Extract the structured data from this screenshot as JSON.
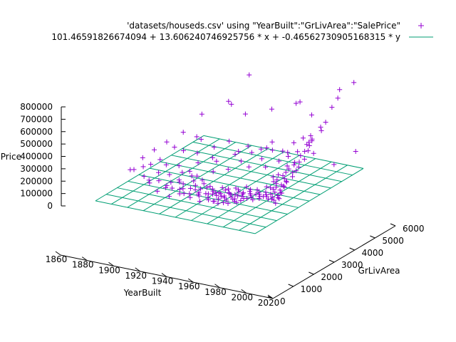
{
  "chart_data": {
    "type": "scatter",
    "plot3d": true,
    "legend": {
      "placement": "top-right",
      "entries": [
        {
          "label": "'datasets/houseds.csv' using \"YearBuilt\":\"GrLivArea\":\"SalePrice\"",
          "marker": "plus",
          "color": "#9400d3"
        },
        {
          "label": "101.46591826674094 + 13.606240746925756 * x + -0.46562730905168315 * y",
          "marker": "line",
          "color": "#009e73"
        }
      ]
    },
    "axes": {
      "x": {
        "label": "YearBuilt",
        "range": [
          1860,
          2020
        ],
        "ticks": [
          "1860",
          "1880",
          "1900",
          "1920",
          "1940",
          "1960",
          "1980",
          "2000",
          "2020"
        ]
      },
      "y": {
        "label": "GrLivArea",
        "range": [
          0,
          6000
        ],
        "ticks": [
          "0",
          "1000",
          "2000",
          "3000",
          "4000",
          "5000",
          "6000"
        ]
      },
      "z": {
        "label": "SalePrice",
        "range": [
          0,
          800000
        ],
        "ticks": [
          "0",
          "100000",
          "200000",
          "300000",
          "400000",
          "500000",
          "600000",
          "700000",
          "800000"
        ]
      }
    },
    "series": [
      {
        "name": "'datasets/houseds.csv' using \"YearBuilt\":\"GrLivArea\":\"SalePrice\"",
        "kind": "points",
        "color": "#9400d3",
        "points": [
          [
            1915,
            1050,
            125000
          ],
          [
            1920,
            1500,
            140000
          ],
          [
            1925,
            1200,
            118000
          ],
          [
            1930,
            1650,
            155000
          ],
          [
            1935,
            1100,
            110000
          ],
          [
            1940,
            1400,
            132000
          ],
          [
            1945,
            1000,
            120000
          ],
          [
            1950,
            1200,
            128000
          ],
          [
            1955,
            1300,
            140000
          ],
          [
            1958,
            1150,
            135000
          ],
          [
            1960,
            1250,
            145000
          ],
          [
            1963,
            1100,
            140000
          ],
          [
            1965,
            1400,
            150000
          ],
          [
            1968,
            1300,
            148000
          ],
          [
            1970,
            1200,
            142000
          ],
          [
            1972,
            1500,
            160000
          ],
          [
            1975,
            1250,
            155000
          ],
          [
            1977,
            1400,
            162000
          ],
          [
            1980,
            1600,
            170000
          ],
          [
            1985,
            1700,
            185000
          ],
          [
            1990,
            1900,
            200000
          ],
          [
            1993,
            2100,
            230000
          ],
          [
            1995,
            1800,
            210000
          ],
          [
            1997,
            2000,
            230000
          ],
          [
            1999,
            1700,
            215000
          ],
          [
            2000,
            1800,
            225000
          ],
          [
            2001,
            2200,
            260000
          ],
          [
            2002,
            1600,
            205000
          ],
          [
            2003,
            1900,
            240000
          ],
          [
            2004,
            2100,
            255000
          ],
          [
            2005,
            1700,
            220000
          ],
          [
            2005,
            2400,
            300000
          ],
          [
            2006,
            1500,
            195000
          ],
          [
            2006,
            2000,
            260000
          ],
          [
            2007,
            1800,
            240000
          ],
          [
            2007,
            2600,
            330000
          ],
          [
            2008,
            1600,
            210000
          ],
          [
            2008,
            2200,
            290000
          ],
          [
            2009,
            1400,
            185000
          ],
          [
            2009,
            2800,
            380000
          ],
          [
            1910,
            900,
            100000
          ],
          [
            1912,
            1300,
            115000
          ],
          [
            1918,
            1600,
            145000
          ],
          [
            1922,
            800,
            90000
          ],
          [
            1926,
            1800,
            175000
          ],
          [
            1928,
            1000,
            105000
          ],
          [
            1932,
            1350,
            125000
          ],
          [
            1936,
            1750,
            165000
          ],
          [
            1938,
            950,
            98000
          ],
          [
            1941,
            1250,
            118000
          ],
          [
            1946,
            1550,
            150000
          ],
          [
            1948,
            850,
            95000
          ],
          [
            1952,
            1050,
            115000
          ],
          [
            1954,
            950,
            110000
          ],
          [
            1956,
            1600,
            155000
          ],
          [
            1959,
            900,
            112000
          ],
          [
            1961,
            1450,
            158000
          ],
          [
            1962,
            1000,
            128000
          ],
          [
            1964,
            1200,
            138000
          ],
          [
            1966,
            1100,
            135000
          ],
          [
            1967,
            1650,
            168000
          ],
          [
            1969,
            1000,
            132000
          ],
          [
            1971,
            1350,
            150000
          ],
          [
            1973,
            1100,
            138000
          ],
          [
            1974,
            1800,
            178000
          ],
          [
            1976,
            1000,
            135000
          ],
          [
            1978,
            1300,
            152000
          ],
          [
            1979,
            1700,
            175000
          ],
          [
            1981,
            1200,
            150000
          ],
          [
            1984,
            1400,
            165000
          ],
          [
            1986,
            1300,
            160000
          ],
          [
            1988,
            1600,
            178000
          ],
          [
            1992,
            1400,
            172000
          ],
          [
            1994,
            1600,
            190000
          ],
          [
            1996,
            1500,
            182000
          ],
          [
            1998,
            2300,
            270000
          ],
          [
            2000,
            2500,
            310000
          ],
          [
            2002,
            2700,
            350000
          ],
          [
            2004,
            2900,
            390000
          ],
          [
            2006,
            3000,
            420000
          ],
          [
            2007,
            3200,
            450000
          ],
          [
            2008,
            2400,
            320000
          ],
          [
            2005,
            3300,
            465000
          ],
          [
            2003,
            2600,
            340000
          ],
          [
            1999,
            2400,
            290000
          ],
          [
            1997,
            2600,
            320000
          ],
          [
            1994,
            2300,
            270000
          ],
          [
            1991,
            2200,
            255000
          ],
          [
            1880,
            1500,
            165000
          ],
          [
            1885,
            1700,
            180000
          ],
          [
            1890,
            1800,
            200000
          ],
          [
            1892,
            1300,
            150000
          ],
          [
            1895,
            2000,
            230000
          ],
          [
            1898,
            1200,
            140000
          ],
          [
            1900,
            1600,
            170000
          ],
          [
            1900,
            1100,
            130000
          ],
          [
            1902,
            1900,
            210000
          ],
          [
            1905,
            1300,
            140000
          ],
          [
            1908,
            1700,
            160000
          ],
          [
            1910,
            2100,
            200000
          ],
          [
            1914,
            1400,
            135000
          ],
          [
            1916,
            1900,
            175000
          ],
          [
            1919,
            1150,
            120000
          ],
          [
            1921,
            2000,
            185000
          ],
          [
            1924,
            1450,
            138000
          ],
          [
            1927,
            1250,
            122000
          ],
          [
            1929,
            1900,
            170000
          ],
          [
            1931,
            1050,
            108000
          ],
          [
            1934,
            1500,
            140000
          ],
          [
            1937,
            1300,
            128000
          ],
          [
            1939,
            1650,
            150000
          ],
          [
            1942,
            1150,
            115000
          ],
          [
            1944,
            1500,
            142000
          ],
          [
            1947,
            1250,
            120000
          ],
          [
            1949,
            1500,
            140000
          ],
          [
            1951,
            1400,
            135000
          ],
          [
            1953,
            1250,
            128000
          ],
          [
            1957,
            1350,
            138000
          ],
          [
            1960,
            900,
            115000
          ],
          [
            1962,
            1550,
            160000
          ],
          [
            1964,
            850,
            110000
          ],
          [
            1966,
            1350,
            150000
          ],
          [
            1968,
            900,
            118000
          ],
          [
            1970,
            1600,
            165000
          ],
          [
            1972,
            900,
            120000
          ],
          [
            1974,
            1150,
            138000
          ],
          [
            1976,
            1500,
            160000
          ],
          [
            1978,
            1000,
            130000
          ],
          [
            1980,
            1100,
            140000
          ],
          [
            1982,
            1500,
            165000
          ],
          [
            1983,
            1250,
            150000
          ],
          [
            1987,
            1500,
            170000
          ],
          [
            1989,
            1200,
            155000
          ],
          [
            1990,
            1500,
            175000
          ],
          [
            1993,
            1300,
            165000
          ],
          [
            1995,
            1400,
            175000
          ],
          [
            1996,
            2100,
            250000
          ],
          [
            1998,
            1400,
            180000
          ],
          [
            2000,
            1500,
            195000
          ],
          [
            2001,
            1300,
            175000
          ],
          [
            2003,
            1400,
            185000
          ],
          [
            2004,
            1300,
            180000
          ],
          [
            2005,
            1900,
            235000
          ],
          [
            2006,
            1300,
            175000
          ],
          [
            2007,
            1600,
            210000
          ],
          [
            2008,
            1400,
            190000
          ],
          [
            2009,
            1200,
            165000
          ],
          [
            2006,
            2700,
            360000
          ],
          [
            1906,
            2600,
            270000
          ],
          [
            1912,
            3200,
            320000
          ],
          [
            1922,
            2400,
            220000
          ],
          [
            1930,
            2700,
            250000
          ],
          [
            1935,
            3300,
            340000
          ],
          [
            1940,
            2100,
            210000
          ],
          [
            1950,
            2300,
            230000
          ],
          [
            1955,
            2700,
            270000
          ],
          [
            1965,
            2500,
            260000
          ],
          [
            1970,
            2900,
            300000
          ],
          [
            1978,
            2600,
            275000
          ],
          [
            1985,
            2900,
            310000
          ],
          [
            1990,
            3100,
            340000
          ],
          [
            1995,
            3300,
            370000
          ],
          [
            2000,
            3500,
            420000
          ],
          [
            2003,
            3600,
            460000
          ],
          [
            2006,
            3400,
            470000
          ],
          [
            2008,
            3800,
            520000
          ],
          [
            2007,
            4100,
            560000
          ],
          [
            2009,
            3000,
            430000
          ],
          [
            1900,
            4000,
            430000
          ],
          [
            1918,
            4500,
            500000
          ],
          [
            1935,
            4200,
            480000
          ],
          [
            1955,
            4400,
            540000
          ],
          [
            1970,
            4800,
            580000
          ],
          [
            1990,
            4400,
            560000
          ],
          [
            2003,
            4700,
            620000
          ],
          [
            2005,
            4900,
            680000
          ],
          [
            1925,
            3900,
            590000
          ],
          [
            1932,
            4600,
            755000
          ],
          [
            1975,
            4700,
            610000
          ],
          [
            2005,
            5000,
            740000
          ],
          [
            2008,
            5600,
            750000
          ],
          [
            2008,
            5700,
            185000
          ],
          [
            2008,
            4500,
            185000
          ],
          [
            1998,
            4000,
            300000
          ],
          [
            1980,
            3700,
            300000
          ],
          [
            1960,
            3800,
            290000
          ],
          [
            1940,
            3500,
            250000
          ],
          [
            1890,
            3600,
            300000
          ],
          [
            1872,
            1800,
            122000
          ],
          [
            1875,
            2300,
            180000
          ],
          [
            1882,
            2500,
            240000
          ],
          [
            1885,
            3000,
            265000
          ],
          [
            1895,
            2800,
            260000
          ],
          [
            1905,
            3400,
            310000
          ],
          [
            1915,
            2800,
            250000
          ],
          [
            1925,
            3100,
            290000
          ],
          [
            1935,
            2600,
            240000
          ],
          [
            1945,
            3000,
            280000
          ],
          [
            1950,
            3400,
            320000
          ],
          [
            1958,
            3100,
            310000
          ],
          [
            1963,
            3300,
            330000
          ],
          [
            1968,
            3600,
            370000
          ],
          [
            1973,
            3300,
            340000
          ],
          [
            1982,
            3300,
            350000
          ],
          [
            1987,
            3600,
            400000
          ],
          [
            1992,
            3800,
            430000
          ],
          [
            1997,
            3900,
            450000
          ],
          [
            2001,
            4200,
            500000
          ]
        ]
      },
      {
        "name": "101.46591826674094 + 13.606240746925756 * x + -0.46562730905168315 * y",
        "kind": "surface",
        "color": "#009e73",
        "intercept": 101.46591826674094,
        "coef_x": 13.606240746925756,
        "coef_y": -0.46562730905168315,
        "grid": {
          "x_steps": 10,
          "y_steps": 10
        }
      }
    ]
  }
}
